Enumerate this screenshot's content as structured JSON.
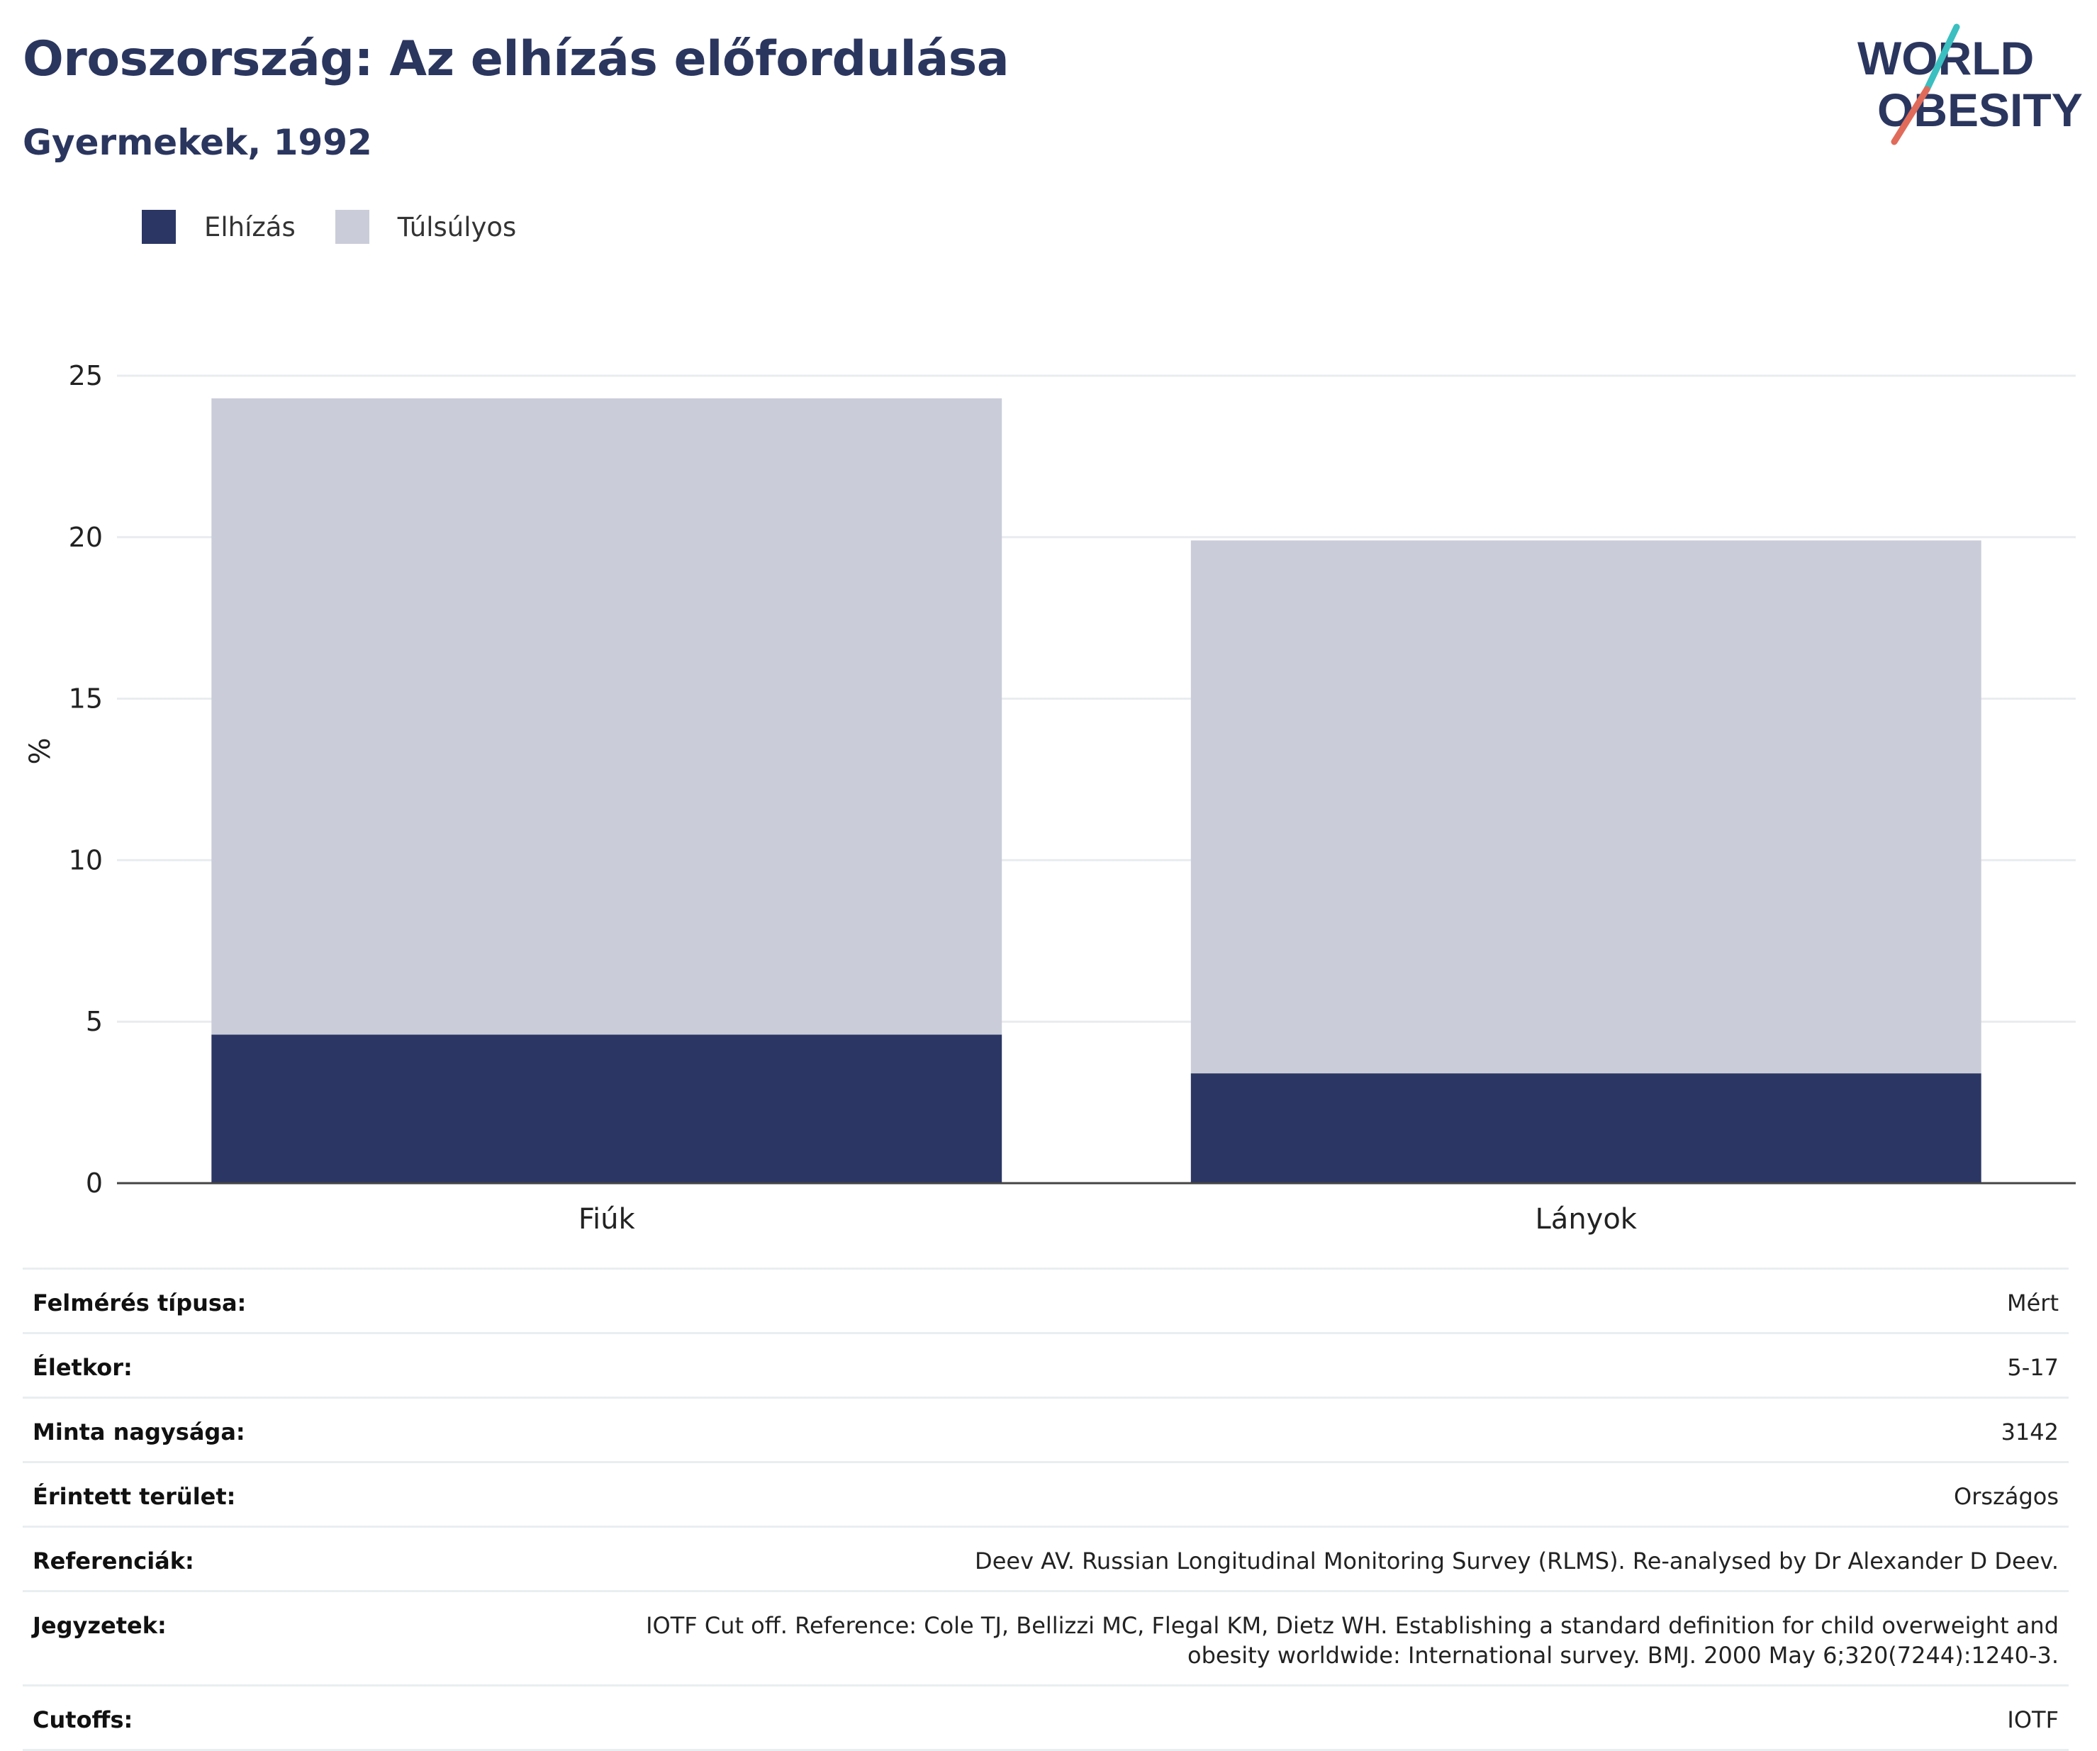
{
  "header": {
    "title": "Oroszország: Az elhízás előfordulása",
    "subtitle": "Gyermekek, 1992"
  },
  "logo": {
    "line1": "WORLD",
    "line2": "OBESITY",
    "colors": {
      "text": "#2b365f",
      "accent_teal": "#3bbfc0",
      "accent_red": "#e06b5a"
    }
  },
  "colors": {
    "obesity": "#2b3664",
    "overweight": "#cacdd9",
    "grid": "#e9ecef",
    "axis": "#444444"
  },
  "legend": [
    {
      "label": "Elhízás",
      "color": "#2b3664"
    },
    {
      "label": "Túlsúlyos",
      "color": "#cacdd9"
    }
  ],
  "chart_data": {
    "type": "bar",
    "stacked": true,
    "title": "",
    "xlabel": "",
    "ylabel": "%",
    "ylim": [
      0,
      25
    ],
    "yticks": [
      0,
      5,
      10,
      15,
      20,
      25
    ],
    "grid": true,
    "legend_position": "top-left",
    "categories": [
      "Fiúk",
      "Lányok"
    ],
    "series": [
      {
        "name": "Elhízás",
        "values": [
          4.6,
          3.4
        ]
      },
      {
        "name": "Túlsúlyos",
        "values": [
          19.7,
          16.5
        ]
      }
    ]
  },
  "info_table": [
    {
      "label": "Felmérés típusa:",
      "value": "Mért"
    },
    {
      "label": "Életkor:",
      "value": "5-17"
    },
    {
      "label": "Minta nagysága:",
      "value": "3142"
    },
    {
      "label": "Érintett terület:",
      "value": "Országos"
    },
    {
      "label": "Referenciák:",
      "value": "Deev AV. Russian Longitudinal Monitoring Survey (RLMS). Re-analysed by Dr Alexander D Deev."
    },
    {
      "label": "Jegyzetek:",
      "value": "IOTF Cut off. Reference: Cole TJ, Bellizzi MC, Flegal KM, Dietz WH. Establishing a standard definition for child overweight and obesity worldwide: International survey. BMJ. 2000 May 6;320(7244):1240-3."
    },
    {
      "label": "Cutoffs:",
      "value": "IOTF"
    }
  ]
}
